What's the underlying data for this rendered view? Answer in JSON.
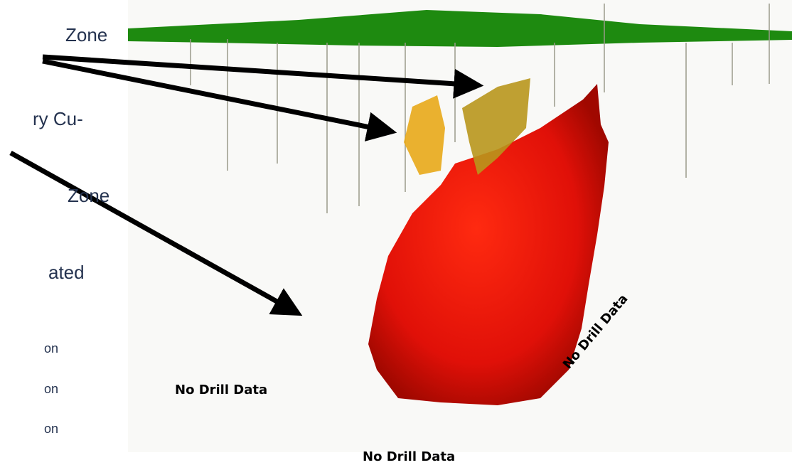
{
  "left_text": [
    "Zone",
    "ry Cu-",
    "Zone",
    "ated",
    "on",
    "on",
    "on"
  ],
  "annotations": [
    "No Drill Data",
    "No Drill Data",
    "No Drill Data"
  ]
}
